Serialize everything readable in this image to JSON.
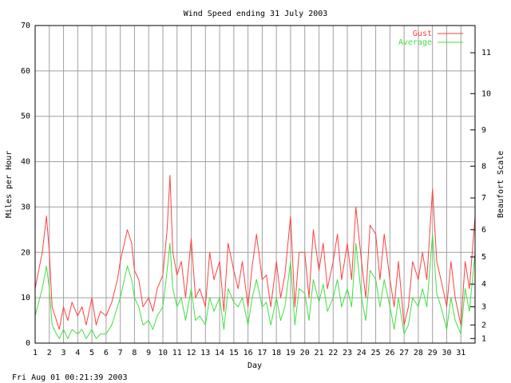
{
  "chart_data": {
    "type": "line",
    "title": "Wind Speed ending 31 July 2003",
    "xlabel": "Day",
    "ylabel": "Miles per Hour",
    "ylabel_right": "Beaufort Scale",
    "ylim": [
      0,
      70
    ],
    "xlim": [
      1,
      32
    ],
    "y_ticks": [
      0,
      10,
      20,
      30,
      40,
      50,
      60,
      70
    ],
    "x_ticks": [
      "1",
      "2",
      "3",
      "4",
      "5",
      "6",
      "7",
      "8",
      "9",
      "10",
      "11",
      "12",
      "13",
      "14",
      "15",
      "16",
      "17",
      "18",
      "19",
      "20",
      "21",
      "22",
      "23",
      "24",
      "25",
      "26",
      "27",
      "28",
      "29",
      "30",
      "31"
    ],
    "beaufort_ticks": [
      {
        "label": "1",
        "mph": 1
      },
      {
        "label": "2",
        "mph": 4
      },
      {
        "label": "3",
        "mph": 8
      },
      {
        "label": "4",
        "mph": 13
      },
      {
        "label": "5",
        "mph": 19
      },
      {
        "label": "6",
        "mph": 25
      },
      {
        "label": "7",
        "mph": 32
      },
      {
        "label": "8",
        "mph": 39
      },
      {
        "label": "9",
        "mph": 47
      },
      {
        "label": "10",
        "mph": 55
      },
      {
        "label": "11",
        "mph": 64
      }
    ],
    "grid": true,
    "legend_position": "top-right",
    "series": [
      {
        "name": "Gust",
        "color": "#ff4040",
        "x": [
          1.0,
          1.5,
          1.8,
          2.0,
          2.2,
          2.5,
          2.7,
          3.0,
          3.3,
          3.6,
          4.0,
          4.3,
          4.6,
          5.0,
          5.3,
          5.6,
          6.0,
          6.4,
          6.8,
          7.0,
          7.5,
          7.8,
          8.0,
          8.3,
          8.6,
          9.0,
          9.3,
          9.6,
          10.0,
          10.3,
          10.5,
          10.7,
          11.0,
          11.3,
          11.6,
          12.0,
          12.3,
          12.6,
          13.0,
          13.3,
          13.6,
          14.0,
          14.3,
          14.6,
          15.0,
          15.3,
          15.6,
          16.0,
          16.3,
          16.6,
          17.0,
          17.3,
          17.6,
          18.0,
          18.3,
          18.6,
          19.0,
          19.3,
          19.6,
          20.0,
          20.3,
          20.6,
          21.0,
          21.3,
          21.6,
          22.0,
          22.3,
          22.6,
          23.0,
          23.3,
          23.6,
          24.0,
          24.3,
          24.6,
          25.0,
          25.3,
          25.6,
          26.0,
          26.3,
          26.6,
          27.0,
          27.3,
          27.6,
          28.0,
          28.3,
          28.6,
          29.0,
          29.3,
          29.6,
          30.0,
          30.3,
          30.6,
          31.0,
          31.3,
          31.6,
          32.0
        ],
        "values": [
          12,
          20,
          28,
          20,
          8,
          5,
          3,
          8,
          5,
          9,
          6,
          8,
          4,
          10,
          4,
          7,
          6,
          9,
          14,
          18,
          25,
          22,
          16,
          14,
          8,
          10,
          7,
          12,
          15,
          25,
          37,
          20,
          15,
          18,
          10,
          23,
          10,
          12,
          8,
          20,
          14,
          18,
          7,
          22,
          16,
          12,
          18,
          8,
          17,
          24,
          14,
          15,
          8,
          18,
          10,
          15,
          28,
          8,
          20,
          20,
          10,
          25,
          16,
          22,
          12,
          18,
          24,
          14,
          22,
          14,
          30,
          18,
          10,
          26,
          24,
          14,
          24,
          14,
          8,
          18,
          4,
          8,
          18,
          14,
          20,
          14,
          34,
          18,
          14,
          8,
          18,
          10,
          4,
          18,
          12,
          28
        ]
      },
      {
        "name": "Average",
        "color": "#40e040",
        "x": [
          1.0,
          1.5,
          1.8,
          2.0,
          2.2,
          2.5,
          2.7,
          3.0,
          3.3,
          3.6,
          4.0,
          4.3,
          4.6,
          5.0,
          5.3,
          5.6,
          6.0,
          6.4,
          6.8,
          7.0,
          7.5,
          7.8,
          8.0,
          8.3,
          8.6,
          9.0,
          9.3,
          9.6,
          10.0,
          10.3,
          10.5,
          10.7,
          11.0,
          11.3,
          11.6,
          12.0,
          12.3,
          12.6,
          13.0,
          13.3,
          13.6,
          14.0,
          14.3,
          14.6,
          15.0,
          15.3,
          15.6,
          16.0,
          16.3,
          16.6,
          17.0,
          17.3,
          17.6,
          18.0,
          18.3,
          18.6,
          19.0,
          19.3,
          19.6,
          20.0,
          20.3,
          20.6,
          21.0,
          21.3,
          21.6,
          22.0,
          22.3,
          22.6,
          23.0,
          23.3,
          23.6,
          24.0,
          24.3,
          24.6,
          25.0,
          25.3,
          25.6,
          26.0,
          26.3,
          26.6,
          27.0,
          27.3,
          27.6,
          28.0,
          28.3,
          28.6,
          29.0,
          29.3,
          29.6,
          30.0,
          30.3,
          30.6,
          31.0,
          31.3,
          31.6,
          32.0
        ],
        "values": [
          6,
          12,
          17,
          12,
          4,
          2,
          1,
          3,
          1,
          3,
          2,
          3,
          1,
          3,
          1,
          2,
          2,
          4,
          8,
          10,
          17,
          14,
          10,
          8,
          4,
          5,
          3,
          6,
          8,
          16,
          22,
          12,
          8,
          10,
          5,
          12,
          5,
          6,
          4,
          10,
          7,
          10,
          3,
          12,
          9,
          8,
          10,
          4,
          10,
          14,
          8,
          9,
          4,
          10,
          5,
          8,
          18,
          4,
          12,
          11,
          5,
          14,
          9,
          13,
          7,
          10,
          14,
          8,
          12,
          8,
          22,
          10,
          5,
          16,
          14,
          8,
          14,
          8,
          3,
          10,
          2,
          4,
          10,
          8,
          12,
          8,
          24,
          11,
          8,
          3,
          10,
          5,
          2,
          12,
          7,
          20
        ]
      }
    ],
    "footer_timestamp": "Fri Aug 01 00:21:39 2003"
  }
}
